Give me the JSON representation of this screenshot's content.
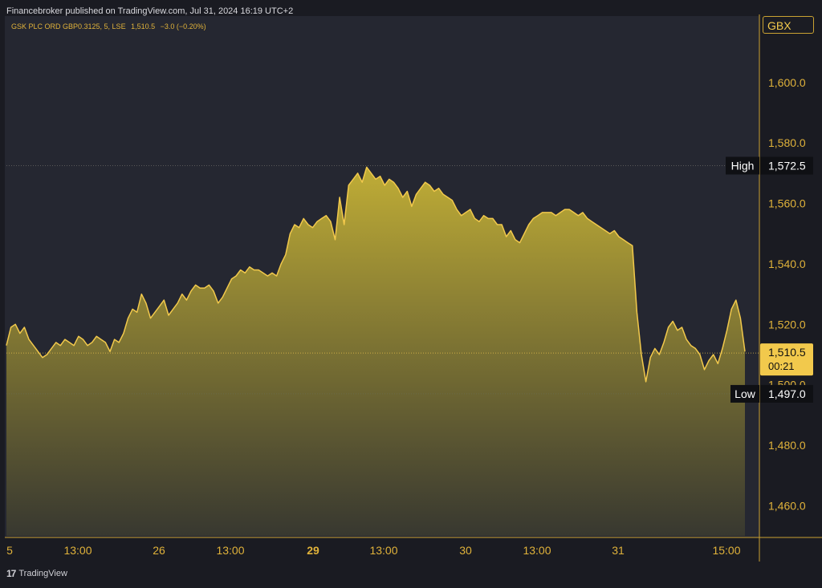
{
  "header": {
    "published": "Financebroker published on TradingView.com, Jul 31, 2024 16:19 UTC+2"
  },
  "legend": {
    "symbol": "GSK PLC ORD GBP0.3125, 5, LSE",
    "last": "1,510.5",
    "change": "−3.0 (−0.20%)"
  },
  "currency": "GBX",
  "footer": {
    "brand": "TradingView"
  },
  "colors": {
    "background": "#252731",
    "line": "#f2c94c",
    "fill_top": "#c8b436",
    "axis_text": "#e0b23a"
  },
  "chart_data": {
    "type": "area",
    "title": "",
    "ylim": [
      1450,
      1622
    ],
    "y_ticks": [
      {
        "value": 1460,
        "label": "1,460.0"
      },
      {
        "value": 1480,
        "label": "1,480.0"
      },
      {
        "value": 1500,
        "label": "1,500.0"
      },
      {
        "value": 1520,
        "label": "1,520.0"
      },
      {
        "value": 1540,
        "label": "1,540.0"
      },
      {
        "value": 1560,
        "label": "1,560.0"
      },
      {
        "value": 1580,
        "label": "1,580.0"
      },
      {
        "value": 1600,
        "label": "1,600.0"
      }
    ],
    "x_ticks": [
      {
        "label": "5",
        "bold": false
      },
      {
        "label": "13:00",
        "bold": false
      },
      {
        "label": "26",
        "bold": false
      },
      {
        "label": "13:00",
        "bold": false
      },
      {
        "label": "29",
        "bold": true
      },
      {
        "label": "13:00",
        "bold": false
      },
      {
        "label": "30",
        "bold": false
      },
      {
        "label": "13:00",
        "bold": false
      },
      {
        "label": "31",
        "bold": false
      },
      {
        "label": "15:00",
        "bold": false
      }
    ],
    "high": {
      "label": "High",
      "value": 1572.5,
      "text": "1,572.5"
    },
    "low": {
      "label": "Low",
      "value": 1497.0,
      "text": "1,497.0"
    },
    "last": {
      "value": 1510.5,
      "text": "1,510.5",
      "countdown": "00:21"
    },
    "series": [
      {
        "points": [
          [
            0,
            1513
          ],
          [
            1,
            1519
          ],
          [
            2,
            1520
          ],
          [
            3,
            1517
          ],
          [
            4,
            1519
          ],
          [
            5,
            1515
          ],
          [
            6,
            1513
          ],
          [
            7,
            1511
          ],
          [
            8,
            1509
          ],
          [
            9,
            1510
          ],
          [
            10,
            1512
          ],
          [
            11,
            1514
          ],
          [
            12,
            1513
          ],
          [
            13,
            1515
          ],
          [
            14,
            1514
          ],
          [
            15,
            1513
          ],
          [
            16,
            1516
          ],
          [
            17,
            1515
          ],
          [
            18,
            1513
          ],
          [
            19,
            1514
          ],
          [
            20,
            1516
          ],
          [
            21,
            1515
          ],
          [
            22,
            1514
          ],
          [
            23,
            1511
          ],
          [
            24,
            1515
          ],
          [
            25,
            1514
          ],
          [
            26,
            1517
          ],
          [
            27,
            1522
          ],
          [
            28,
            1525
          ],
          [
            29,
            1524
          ],
          [
            30,
            1530
          ],
          [
            31,
            1527
          ],
          [
            32,
            1522
          ],
          [
            33,
            1524
          ],
          [
            34,
            1526
          ],
          [
            35,
            1528
          ],
          [
            36,
            1523
          ],
          [
            37,
            1525
          ],
          [
            38,
            1527
          ],
          [
            39,
            1530
          ],
          [
            40,
            1528
          ],
          [
            41,
            1531
          ],
          [
            42,
            1533
          ],
          [
            43,
            1532
          ],
          [
            44,
            1532
          ],
          [
            45,
            1533
          ],
          [
            46,
            1531
          ],
          [
            47,
            1527
          ],
          [
            48,
            1529
          ],
          [
            49,
            1532
          ],
          [
            50,
            1535
          ],
          [
            51,
            1536
          ],
          [
            52,
            1538
          ],
          [
            53,
            1537
          ],
          [
            54,
            1539
          ],
          [
            55,
            1538
          ],
          [
            56,
            1538
          ],
          [
            57,
            1537
          ],
          [
            58,
            1536
          ],
          [
            59,
            1537
          ],
          [
            60,
            1536
          ],
          [
            61,
            1540
          ],
          [
            62,
            1543
          ],
          [
            63,
            1550
          ],
          [
            64,
            1553
          ],
          [
            65,
            1552
          ],
          [
            66,
            1555
          ],
          [
            67,
            1553
          ],
          [
            68,
            1552
          ],
          [
            69,
            1554
          ],
          [
            70,
            1555
          ],
          [
            71,
            1556
          ],
          [
            72,
            1554
          ],
          [
            73,
            1548
          ],
          [
            74,
            1562
          ],
          [
            75,
            1553
          ],
          [
            76,
            1566
          ],
          [
            77,
            1568
          ],
          [
            78,
            1570
          ],
          [
            79,
            1567
          ],
          [
            80,
            1572
          ],
          [
            81,
            1570
          ],
          [
            82,
            1568
          ],
          [
            83,
            1569
          ],
          [
            84,
            1566
          ],
          [
            85,
            1568
          ],
          [
            86,
            1567
          ],
          [
            87,
            1565
          ],
          [
            88,
            1562
          ],
          [
            89,
            1564
          ],
          [
            90,
            1559
          ],
          [
            91,
            1563
          ],
          [
            92,
            1565
          ],
          [
            93,
            1567
          ],
          [
            94,
            1566
          ],
          [
            95,
            1564
          ],
          [
            96,
            1565
          ],
          [
            97,
            1563
          ],
          [
            98,
            1562
          ],
          [
            99,
            1561
          ],
          [
            100,
            1558
          ],
          [
            101,
            1556
          ],
          [
            102,
            1557
          ],
          [
            103,
            1558
          ],
          [
            104,
            1555
          ],
          [
            105,
            1554
          ],
          [
            106,
            1556
          ],
          [
            107,
            1555
          ],
          [
            108,
            1555
          ],
          [
            109,
            1553
          ],
          [
            110,
            1553
          ],
          [
            111,
            1549
          ],
          [
            112,
            1551
          ],
          [
            113,
            1548
          ],
          [
            114,
            1547
          ],
          [
            115,
            1550
          ],
          [
            116,
            1553
          ],
          [
            117,
            1555
          ],
          [
            118,
            1556
          ],
          [
            119,
            1557
          ],
          [
            120,
            1557
          ],
          [
            121,
            1557
          ],
          [
            122,
            1556
          ],
          [
            123,
            1557
          ],
          [
            124,
            1558
          ],
          [
            125,
            1558
          ],
          [
            126,
            1557
          ],
          [
            127,
            1556
          ],
          [
            128,
            1557
          ],
          [
            129,
            1555
          ],
          [
            130,
            1554
          ],
          [
            131,
            1553
          ],
          [
            132,
            1552
          ],
          [
            133,
            1551
          ],
          [
            134,
            1550
          ],
          [
            135,
            1551
          ],
          [
            136,
            1549
          ],
          [
            137,
            1548
          ],
          [
            138,
            1547
          ],
          [
            139,
            1546
          ],
          [
            140,
            1524
          ],
          [
            141,
            1510
          ],
          [
            142,
            1501
          ],
          [
            143,
            1509
          ],
          [
            144,
            1512
          ],
          [
            145,
            1510
          ],
          [
            146,
            1514
          ],
          [
            147,
            1519
          ],
          [
            148,
            1521
          ],
          [
            149,
            1518
          ],
          [
            150,
            1519
          ],
          [
            151,
            1515
          ],
          [
            152,
            1513
          ],
          [
            153,
            1512
          ],
          [
            154,
            1510
          ],
          [
            155,
            1505
          ],
          [
            156,
            1508
          ],
          [
            157,
            1510
          ],
          [
            158,
            1507
          ],
          [
            159,
            1512
          ],
          [
            160,
            1518
          ],
          [
            161,
            1525
          ],
          [
            162,
            1528
          ],
          [
            163,
            1522
          ],
          [
            164,
            1511
          ]
        ]
      }
    ]
  }
}
